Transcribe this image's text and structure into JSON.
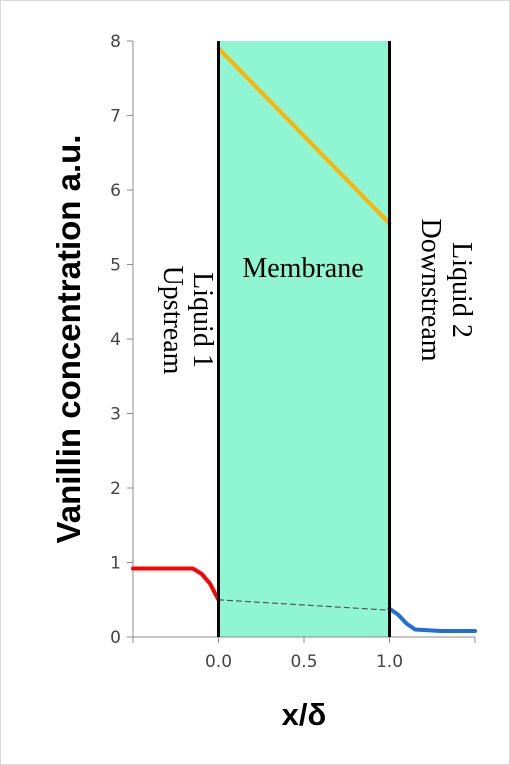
{
  "chart_data": {
    "type": "line",
    "xlabel": "x/δ",
    "ylabel": "Vanillin concentration a.u.",
    "xlim": [
      -0.5,
      1.5
    ],
    "ylim": [
      0,
      8
    ],
    "x_ticks": [
      "0.0",
      "0.5",
      "1.0"
    ],
    "y_ticks": [
      "0",
      "1",
      "2",
      "3",
      "4",
      "5",
      "6",
      "7",
      "8"
    ],
    "grid": false,
    "colors": {
      "membrane": "#8ff5d2",
      "upstream": "#ff0000",
      "membrane_profile": "#ffb300",
      "downstream": "#1f6fd6",
      "interface_link": "#555555",
      "boundary": "#000000"
    },
    "membrane_region": {
      "x": [
        0,
        1
      ],
      "y": [
        0,
        8
      ]
    },
    "regions": {
      "upstream_line1": "Upstream",
      "upstream_line2": "Liquid 1",
      "membrane": "Membrane",
      "downstream_line1": "Downstream",
      "downstream_line2": "Liquid 2"
    },
    "series": [
      {
        "key": "upstream",
        "x": [
          -0.5,
          -0.3,
          -0.15,
          -0.1,
          -0.05,
          0.0
        ],
        "y": [
          0.92,
          0.92,
          0.92,
          0.85,
          0.72,
          0.5
        ]
      },
      {
        "key": "membrane_profile",
        "x": [
          0.0,
          1.0
        ],
        "y": [
          7.9,
          5.55
        ]
      },
      {
        "key": "downstream",
        "x": [
          1.0,
          1.05,
          1.1,
          1.15,
          1.3,
          1.5
        ],
        "y": [
          0.38,
          0.3,
          0.18,
          0.1,
          0.08,
          0.08
        ]
      },
      {
        "key": "interface_link",
        "dashed": true,
        "x": [
          0.0,
          1.0
        ],
        "y": [
          0.5,
          0.36
        ]
      }
    ]
  }
}
